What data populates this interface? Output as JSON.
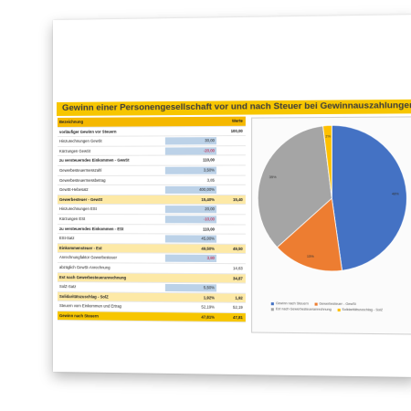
{
  "title": "Gewinn einer Personengesellschaft vor und nach Steuer bei Gewinnauszahlungen",
  "table": {
    "header_label": "Bezeichnung",
    "header_value": "Werte",
    "rows": [
      {
        "label": "vorläufiger Gewinn vor Steuern",
        "val": "",
        "val2": "100,00",
        "style": "bold",
        "input": false,
        "neg": false
      },
      {
        "label": "Hinzurechnungen GewSt",
        "val": "30,00",
        "val2": "",
        "style": "",
        "input": true,
        "neg": false
      },
      {
        "label": "Kürzungen GewSt",
        "val": "-20,00",
        "val2": "",
        "style": "",
        "input": true,
        "neg": true
      },
      {
        "label": "zu versteuerndes Einkommen - GewSt",
        "val": "110,00",
        "val2": "",
        "style": "bold",
        "input": false,
        "neg": false
      },
      {
        "label": "Gewerbesteuermesszahl",
        "val": "3,50%",
        "val2": "",
        "style": "",
        "input": true,
        "neg": false
      },
      {
        "label": "Gewerbesteuermessbetrag",
        "val": "3,85",
        "val2": "",
        "style": "",
        "input": false,
        "neg": false
      },
      {
        "label": "GewSt-Hebesatz",
        "val": "400,00%",
        "val2": "",
        "style": "",
        "input": true,
        "neg": false
      },
      {
        "label": "Gewerbesteuer - GewSt",
        "val": "15,40%",
        "val2": "15,40",
        "style": "band",
        "input": false,
        "neg": false
      },
      {
        "label": "Hinzurechnungen ESt",
        "val": "20,00",
        "val2": "",
        "style": "",
        "input": true,
        "neg": false
      },
      {
        "label": "Kürzungen ESt",
        "val": "-10,00",
        "val2": "",
        "style": "",
        "input": true,
        "neg": true
      },
      {
        "label": "zu versteuerndes Einkommen - ESt",
        "val": "110,00",
        "val2": "",
        "style": "bold",
        "input": false,
        "neg": false
      },
      {
        "label": "ESt-Satz",
        "val": "45,00%",
        "val2": "",
        "style": "",
        "input": true,
        "neg": false
      },
      {
        "label": "Einkommensteuer - Est",
        "val": "49,50%",
        "val2": "49,50",
        "style": "band",
        "input": false,
        "neg": false
      },
      {
        "label": "Anrechnungfaktor Gewerbesteuer",
        "val": "3,80",
        "val2": "",
        "style": "",
        "input": true,
        "neg": true
      },
      {
        "label": "abzüglich GewSt-Anrechnung",
        "val": "",
        "val2": "14,63",
        "style": "",
        "input": false,
        "neg": false
      },
      {
        "label": "Est nach Gewerbesteueranrechnung",
        "val": "",
        "val2": "34,87",
        "style": "band",
        "input": false,
        "neg": false
      },
      {
        "label": "SolZ-Satz",
        "val": "5,50%",
        "val2": "",
        "style": "",
        "input": true,
        "neg": false
      },
      {
        "label": "Solidaritätszuschlag - SolZ",
        "val": "1,92%",
        "val2": "1,92",
        "style": "band",
        "input": false,
        "neg": false
      },
      {
        "label": "Steuern vom Einkommen und Ertrag",
        "val": "52,19%",
        "val2": "52,19",
        "style": "",
        "input": false,
        "neg": false
      },
      {
        "label": "Gewinn nach Steuern",
        "val": "47,81%",
        "val2": "47,81",
        "style": "footer",
        "input": false,
        "neg": false
      }
    ]
  },
  "chart_data": {
    "type": "pie",
    "slices": [
      {
        "label": "48%",
        "value": 47.81,
        "color": "#4472c4"
      },
      {
        "label": "15%",
        "value": 15.4,
        "color": "#ed7d31"
      },
      {
        "label": "35%",
        "value": 34.87,
        "color": "#a5a5a5"
      },
      {
        "label": "2%",
        "value": 1.92,
        "color": "#ffc000"
      }
    ],
    "legend": [
      {
        "name": "Gewinn nach Steuern",
        "color": "#4472c4"
      },
      {
        "name": "Gewerbesteuer - GewSt",
        "color": "#ed7d31"
      },
      {
        "name": "Est nach Gewerbesteueranrechnung",
        "color": "#a5a5a5"
      },
      {
        "name": "Solidaritätszuschlag - SolZ",
        "color": "#ffc000"
      }
    ]
  }
}
